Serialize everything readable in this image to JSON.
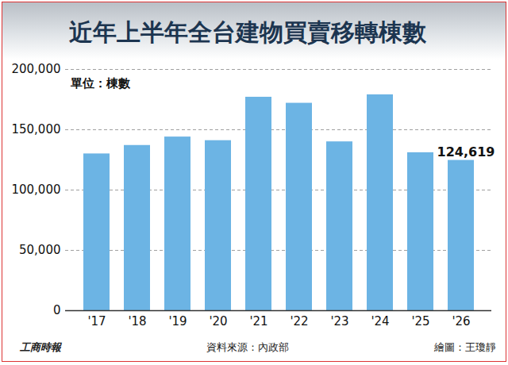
{
  "chart_data": {
    "type": "bar",
    "title": "近年上半年全台建物買賣移轉棟數",
    "subtitle": "單位：棟數",
    "caption": "資料來源：內政部",
    "credit": "繪圖：王瓊靜",
    "publisher": "工商時報",
    "categories": [
      "'17",
      "'18",
      "'19",
      "'20",
      "'21",
      "'22",
      "'23",
      "'24",
      "'25",
      "'26"
    ],
    "values": [
      130000,
      137000,
      144000,
      141000,
      177000,
      172000,
      140000,
      179000,
      131000,
      124619
    ],
    "value_labels": [
      null,
      null,
      null,
      null,
      null,
      null,
      null,
      null,
      null,
      "124,619"
    ],
    "data_labels": true,
    "color": "#6cb4e4",
    "ylim": [
      0,
      200000
    ],
    "yticks": [
      0,
      {
        "value": 50000,
        "label": "50,000"
      },
      {
        "value": 100000,
        "label": "100,000"
      },
      {
        "value": 150000,
        "label": "150,000"
      },
      {
        "value": 200000,
        "label": "200,000"
      }
    ],
    "grid": true
  }
}
